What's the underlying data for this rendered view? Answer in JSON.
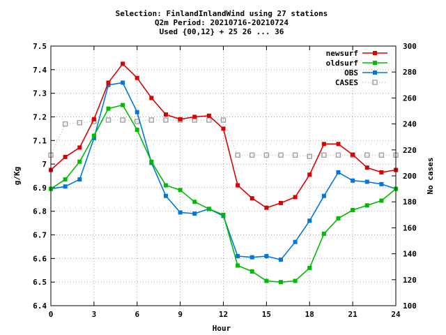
{
  "chart_data": {
    "type": "line",
    "title_lines": [
      "Selection: FinlandInlandWind using    27 stations",
      "Q2m   Period: 20210716-20210724",
      "Used {00,12} + 25 26 ... 36"
    ],
    "xlabel": "Hour",
    "ylabel": "g/Kg",
    "y2label": "No cases",
    "xlim": [
      0,
      24
    ],
    "ylim": [
      6.4,
      7.5
    ],
    "y2lim": [
      100,
      300
    ],
    "x_ticks": [
      0,
      3,
      6,
      9,
      12,
      15,
      18,
      21,
      24
    ],
    "y_ticks": [
      "6.4",
      "6.5",
      "6.6",
      "6.7",
      "6.8",
      "6.9",
      "7",
      "7.1",
      "7.2",
      "7.3",
      "7.4",
      "7.5"
    ],
    "y2_ticks": [
      100,
      120,
      140,
      160,
      180,
      200,
      220,
      240,
      260,
      280,
      300
    ],
    "grid": true,
    "legend_position": "top-right",
    "x": [
      0,
      1,
      2,
      3,
      4,
      5,
      6,
      7,
      8,
      9,
      10,
      11,
      12,
      13,
      14,
      15,
      16,
      17,
      18,
      19,
      20,
      21,
      22,
      23,
      24
    ],
    "series": [
      {
        "name": "newsurf",
        "color": "#dd0000",
        "marker": "square-filled",
        "axis": "left",
        "values": [
          6.975,
          7.03,
          7.07,
          7.19,
          7.345,
          7.425,
          7.365,
          7.28,
          7.21,
          7.19,
          7.2,
          7.205,
          7.15,
          6.91,
          6.855,
          6.815,
          6.835,
          6.86,
          6.955,
          7.085,
          7.085,
          7.04,
          6.985,
          6.965,
          6.975
        ]
      },
      {
        "name": "oldsurf",
        "color": "#00bb00",
        "marker": "square-filled",
        "axis": "left",
        "values": [
          6.895,
          6.935,
          7.01,
          7.12,
          7.235,
          7.25,
          7.145,
          7.01,
          6.91,
          6.89,
          6.84,
          6.81,
          6.785,
          6.57,
          6.545,
          6.505,
          6.5,
          6.505,
          6.56,
          6.705,
          6.77,
          6.805,
          6.825,
          6.845,
          6.895
        ]
      },
      {
        "name": "OBS",
        "color": "#0077dd",
        "marker": "square-filled",
        "axis": "left",
        "values": [
          6.895,
          6.905,
          6.935,
          7.11,
          7.335,
          7.345,
          7.22,
          7.005,
          6.865,
          6.795,
          6.79,
          6.81,
          6.78,
          6.61,
          6.605,
          6.61,
          6.595,
          6.67,
          6.76,
          6.865,
          6.965,
          6.93,
          6.925,
          6.915,
          6.895
        ]
      },
      {
        "name": "CASES",
        "color": "#a0a0a0",
        "marker": "square-open",
        "axis": "right",
        "line_style": "dotted",
        "values": [
          216,
          240,
          241,
          242,
          243,
          243,
          242,
          243,
          243,
          243,
          243,
          243,
          243,
          216,
          216,
          216,
          216,
          216,
          215,
          216,
          216,
          216,
          216,
          216,
          216
        ]
      }
    ]
  }
}
